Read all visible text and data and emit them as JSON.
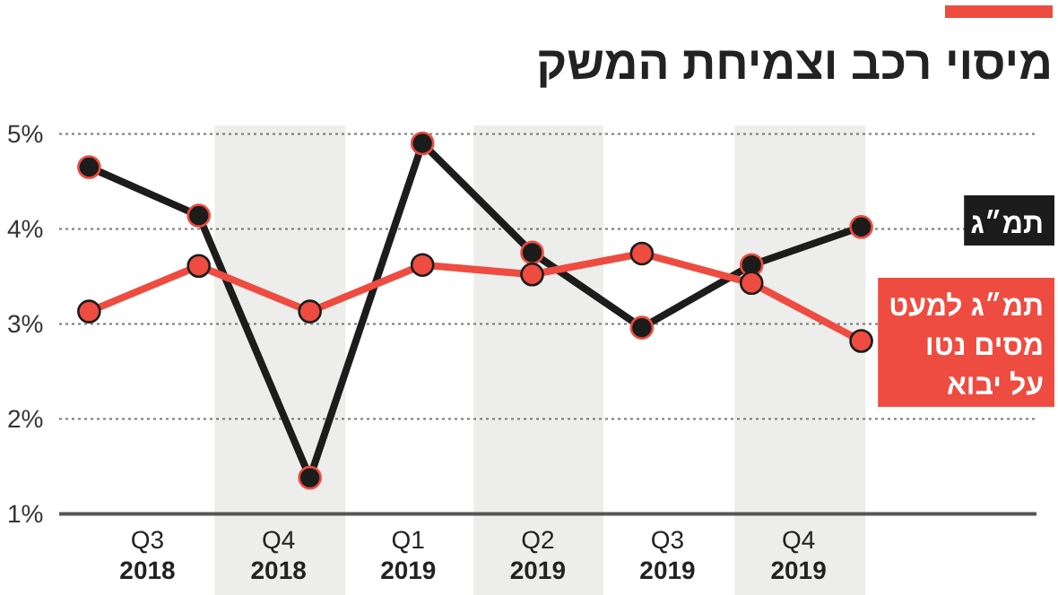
{
  "chart_data": {
    "type": "line",
    "title": "מיסוי רכב וצמיחת המשק",
    "x": [
      "2018-07-05",
      "2018-09-20",
      "2018-12-07",
      "2019-02-24",
      "2019-05-12",
      "2019-07-28",
      "2019-10-13",
      "2019-12-29"
    ],
    "xlim": [
      "2018-06-14",
      "2020-04-30"
    ],
    "xticks": [
      {
        "value": "2018-08-15",
        "label": "Q3\n2018"
      },
      {
        "value": "2018-11-15",
        "label": "Q4\n2018"
      },
      {
        "value": "2019-02-14",
        "label": "Q1\n2019"
      },
      {
        "value": "2019-05-16",
        "label": "Q2\n2019"
      },
      {
        "value": "2019-08-15",
        "label": "Q3\n2019"
      },
      {
        "value": "2019-11-15",
        "label": "Q4\n2019"
      }
    ],
    "ylim": [
      1,
      5
    ],
    "yticks": [
      {
        "value": 1,
        "label": "1%"
      },
      {
        "value": 2,
        "label": "2%"
      },
      {
        "value": 3,
        "label": "3%"
      },
      {
        "value": 4,
        "label": "4%"
      },
      {
        "value": 5,
        "label": "5%"
      }
    ],
    "bands": [
      {
        "axis": "x",
        "from": "2018-10-01",
        "to": "2019-01-01",
        "color": "#ededeb"
      },
      {
        "axis": "x",
        "from": "2019-04-01",
        "to": "2019-07-01",
        "color": "#ededeb"
      },
      {
        "axis": "x",
        "from": "2019-10-01",
        "to": "2020-01-01",
        "color": "#ededeb"
      }
    ],
    "series": [
      {
        "name": "תמ״ג",
        "color": "#1c1c1c",
        "values": [
          4.65,
          4.14,
          1.38,
          4.9,
          3.75,
          2.96,
          3.62,
          4.02
        ]
      },
      {
        "name": "תמ״ג למעט מסים נטו על יבוא",
        "color": "#ee4c40",
        "values": [
          3.13,
          3.61,
          3.13,
          3.62,
          3.52,
          3.74,
          3.43,
          2.82
        ]
      }
    ],
    "grid": "y",
    "legend": "right",
    "marker": "circle",
    "line_style": "solid"
  }
}
